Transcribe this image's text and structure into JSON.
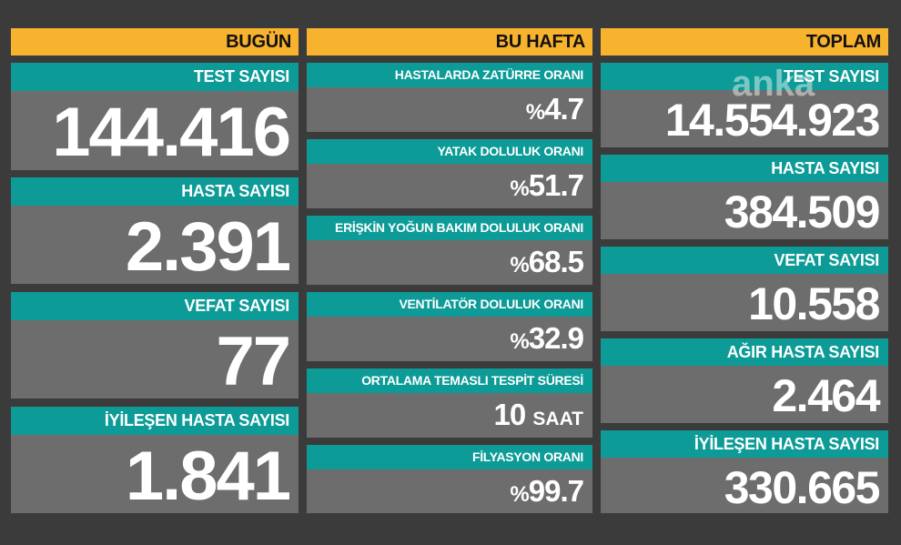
{
  "watermark": "anka",
  "today": {
    "header": "BUGÜN",
    "cards": [
      {
        "label": "TEST SAYISI",
        "value": "144.416"
      },
      {
        "label": "HASTA SAYISI",
        "value": "2.391"
      },
      {
        "label": "VEFAT SAYISI",
        "value": "77"
      },
      {
        "label": "İYİLEŞEN HASTA SAYISI",
        "value": "1.841"
      }
    ]
  },
  "week": {
    "header": "BU HAFTA",
    "cards": [
      {
        "label": "HASTALARDA ZATÜRRE ORANI",
        "prefix": "%",
        "value": "4.7"
      },
      {
        "label": "YATAK DOLULUK ORANI",
        "prefix": "%",
        "value": "51.7"
      },
      {
        "label": "ERİŞKİN YOĞUN BAKIM DOLULUK ORANI",
        "prefix": "%",
        "value": "68.5"
      },
      {
        "label": "VENTİLATÖR DOLULUK ORANI",
        "prefix": "%",
        "value": "32.9"
      },
      {
        "label": "ORTALAMA TEMASLI TESPİT SÜRESİ",
        "value": "10",
        "unit": "SAAT"
      },
      {
        "label": "FİLYASYON ORANI",
        "prefix": "%",
        "value": "99.7"
      }
    ]
  },
  "total": {
    "header": "TOPLAM",
    "cards": [
      {
        "label": "TEST SAYISI",
        "value": "14.554.923"
      },
      {
        "label": "HASTA SAYISI",
        "value": "384.509"
      },
      {
        "label": "VEFAT SAYISI",
        "value": "10.558"
      },
      {
        "label": "AĞIR HASTA SAYISI",
        "value": "2.464"
      },
      {
        "label": "İYİLEŞEN HASTA SAYISI",
        "value": "330.665"
      }
    ]
  }
}
